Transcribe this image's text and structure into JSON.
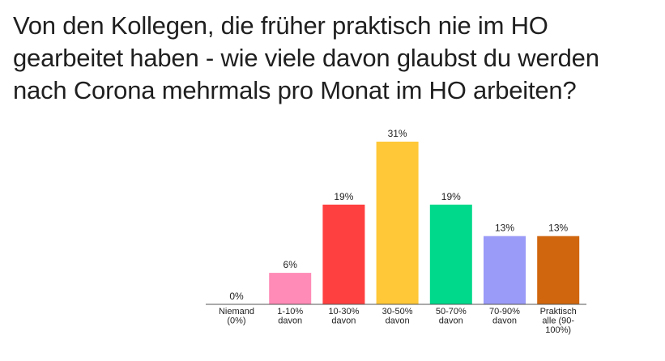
{
  "chart_data": {
    "type": "bar",
    "title": "Von den Kollegen, die früher praktisch nie im HO gearbeitet haben - wie viele davon glaubst du werden nach Corona mehrmals pro Monat im HO arbeiten?",
    "categories": [
      [
        "Niemand",
        "(0%)"
      ],
      [
        "1-10%",
        "davon"
      ],
      [
        "10-30%",
        "davon"
      ],
      [
        "30-50%",
        "davon"
      ],
      [
        "50-70%",
        "davon"
      ],
      [
        "70-90%",
        "davon"
      ],
      [
        "Praktisch",
        "alle (90-",
        "100%)"
      ]
    ],
    "values": [
      0,
      6,
      19,
      31,
      19,
      13,
      13
    ],
    "value_labels": [
      "0%",
      "6%",
      "19%",
      "31%",
      "19%",
      "13%",
      "13%"
    ],
    "colors": [
      "#4a4ad6",
      "#ff8bb6",
      "#ff4040",
      "#ffc838",
      "#00d98b",
      "#9a9af8",
      "#d0660e"
    ],
    "ylim": [
      0,
      31
    ],
    "grid": false,
    "legend": "none"
  }
}
